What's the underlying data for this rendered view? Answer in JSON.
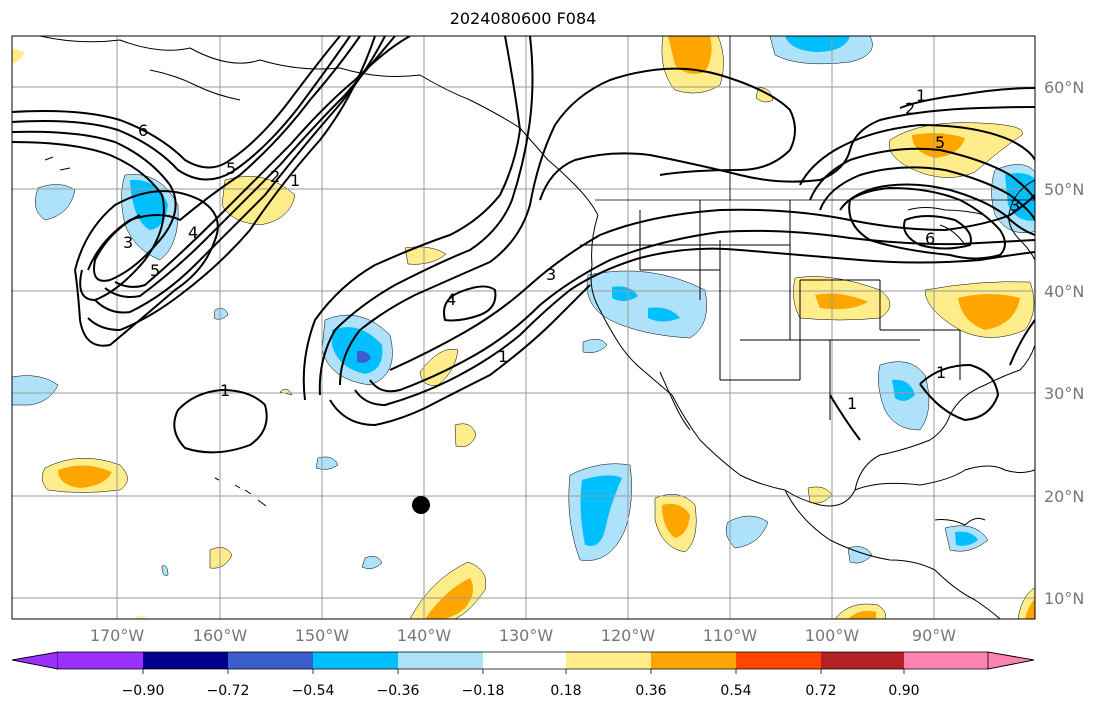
{
  "title": "2024080600 F084",
  "lat_labels": [
    "60°N",
    "50°N",
    "40°N",
    "30°N",
    "20°N",
    "10°N"
  ],
  "lon_labels": [
    "170°W",
    "160°W",
    "150°W",
    "140°W",
    "130°W",
    "120°W",
    "110°W",
    "100°W",
    "90°W"
  ],
  "contour_labels": [
    "1",
    "1",
    "1",
    "1",
    "1",
    "1",
    "2",
    "2",
    "3",
    "3",
    "3",
    "4",
    "4",
    "5",
    "5",
    "5",
    "6",
    "6"
  ],
  "colorbar": {
    "colors": [
      "#9b30ff",
      "#00008b",
      "#3a5fcd",
      "#00bfff",
      "#aee1fa",
      "#ffffff",
      "#ffec8b",
      "#ffa500",
      "#ff4500",
      "#b22222",
      "#ff83b0"
    ],
    "tick_labels": [
      "−0.90",
      "−0.72",
      "−0.54",
      "−0.36",
      "−0.18",
      "0.18",
      "0.36",
      "0.54",
      "0.72",
      "0.90"
    ],
    "extend": "both"
  }
}
